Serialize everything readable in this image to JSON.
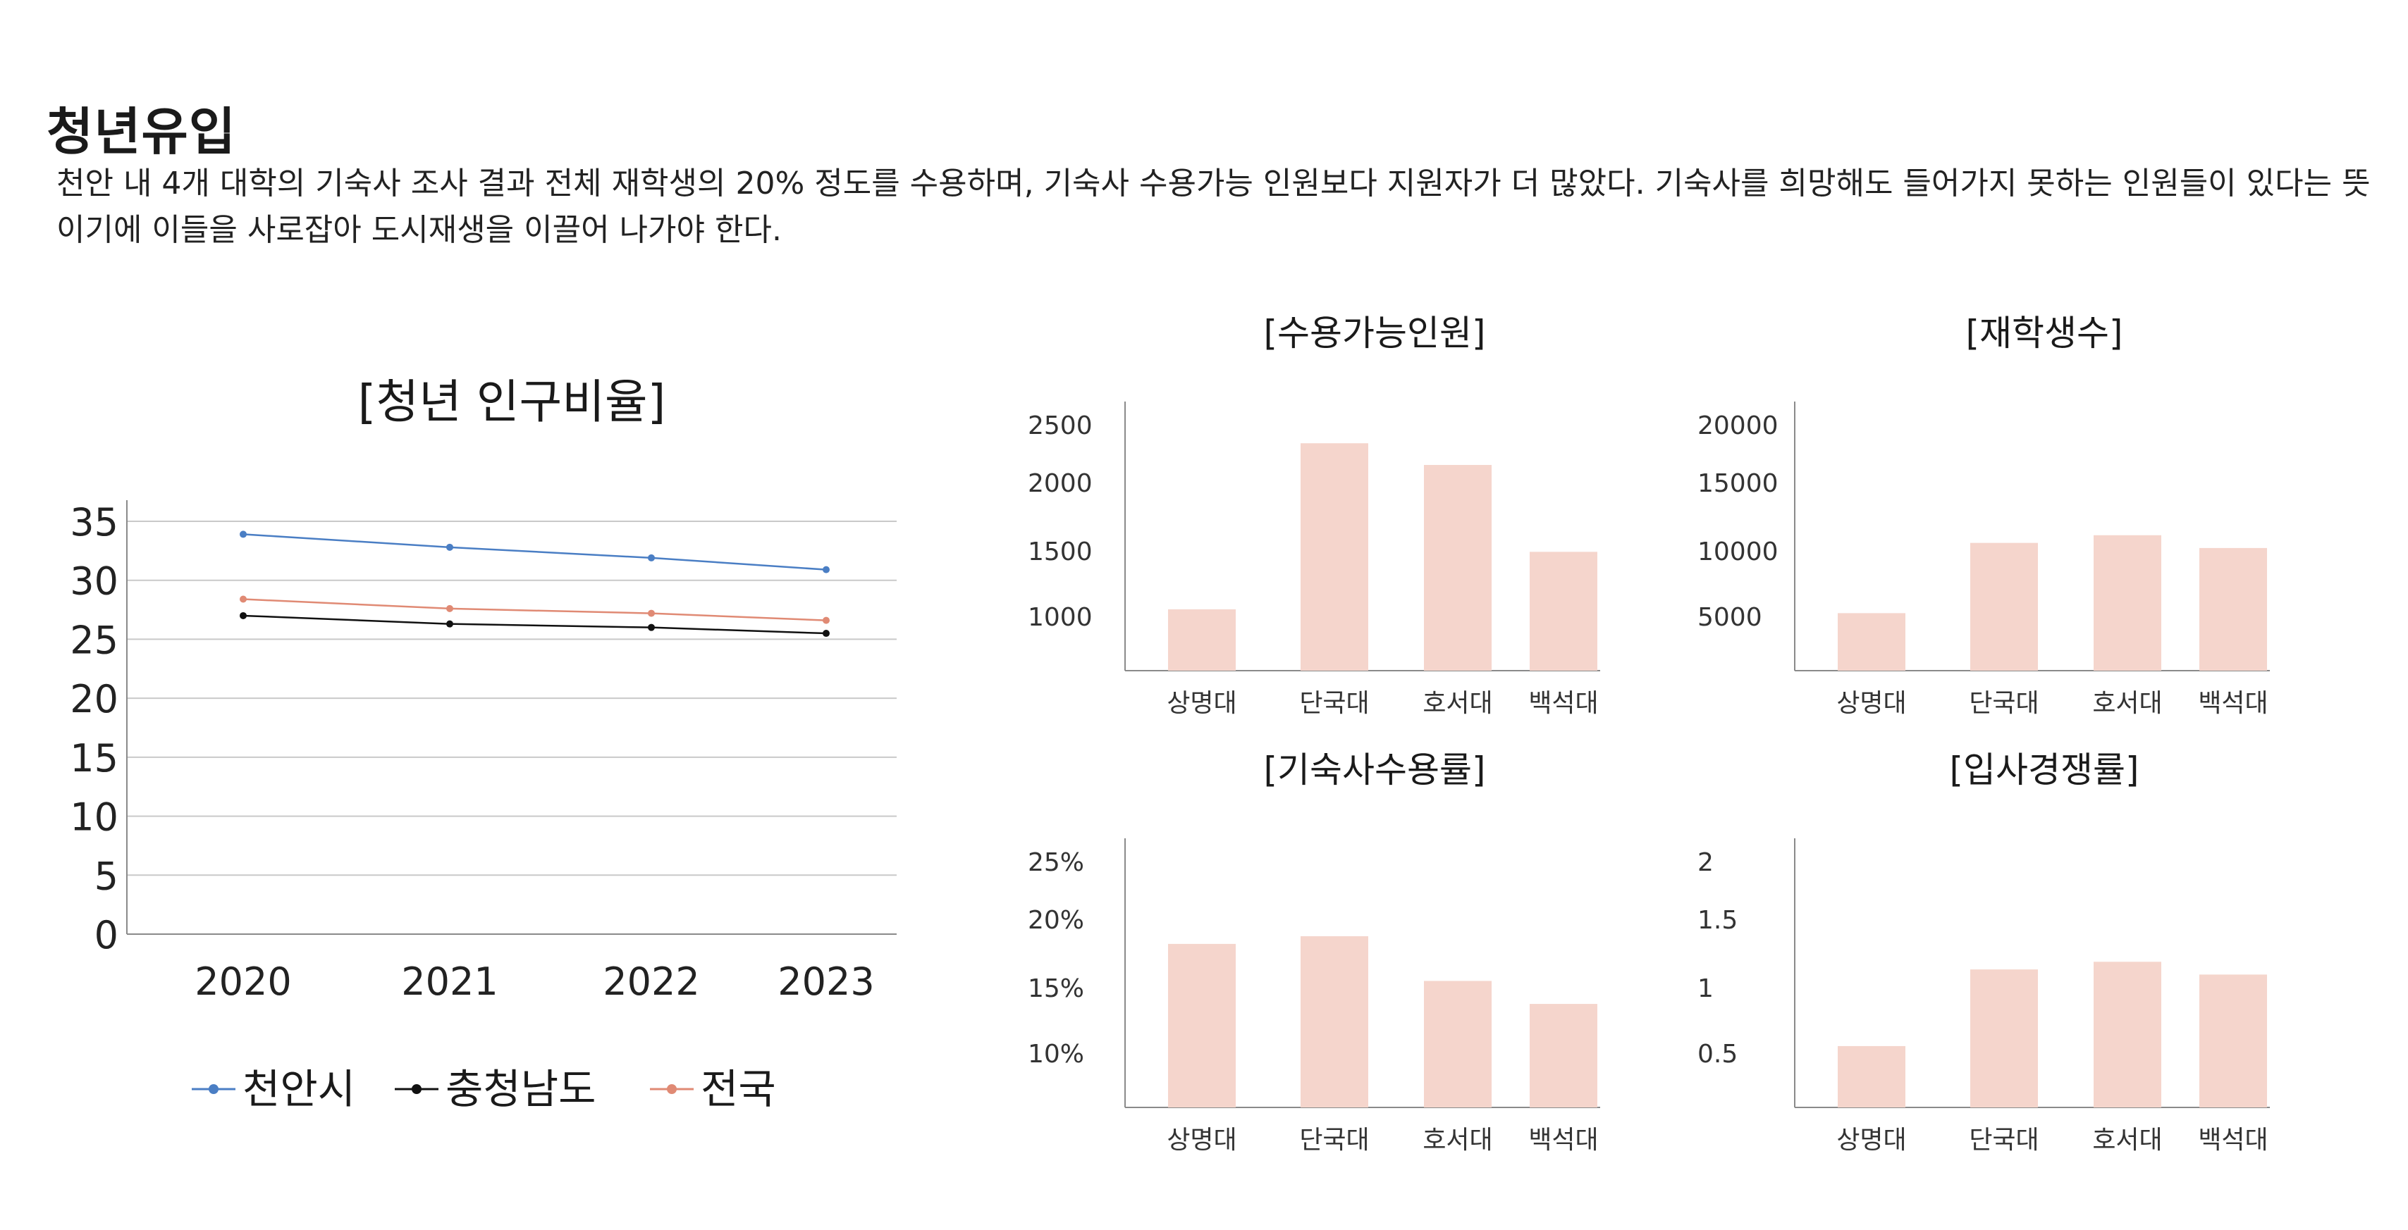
{
  "page": {
    "title": "청년유입",
    "description": "천안 내 4개 대학의 기숙사 조사 결과 전체 재학생의 20% 정도를 수용하며, 기숙사 수용가능 인원보다 지원자가 더 많았다. 기숙사를 희망해도 들어가지 못하는 인원들이 있다는 뜻이기에 이들을 사로잡아 도시재생을 이끌어 나가야 한다."
  },
  "colors": {
    "cheonan": "#4a7ec4",
    "chungnam": "#111111",
    "national": "#e08a74",
    "bar": "#f5d5cc",
    "grid": "#c9c9c9",
    "axis": "#8a8a8a"
  },
  "chart_data": [
    {
      "type": "line",
      "title": "[청년 인구비율]",
      "x": [
        "2020",
        "2021",
        "2022",
        "2023"
      ],
      "series": [
        {
          "name": "천안시",
          "values": [
            33.9,
            32.8,
            31.9,
            30.9
          ]
        },
        {
          "name": "충청남도",
          "values": [
            27.0,
            26.3,
            26.0,
            25.5
          ]
        },
        {
          "name": "전국",
          "values": [
            28.4,
            27.6,
            27.2,
            26.6
          ]
        }
      ],
      "ylim": [
        0,
        35
      ],
      "yticks": [
        "0",
        "5",
        "10",
        "15",
        "20",
        "25",
        "30",
        "35"
      ],
      "grid": true,
      "legend": "bottom"
    },
    {
      "type": "bar",
      "title": "[수용가능인원]",
      "categories": [
        "상명대",
        "단국대",
        "호서대",
        "백석대"
      ],
      "values": [
        1050,
        2350,
        2180,
        1500
      ],
      "yticks": [
        "1000",
        "1500",
        "2000",
        "2500"
      ],
      "ytick_values": [
        1000,
        1500,
        2000,
        2500
      ]
    },
    {
      "type": "bar",
      "title": "[재학생수]",
      "categories": [
        "상명대",
        "단국대",
        "호서대",
        "백석대"
      ],
      "values": [
        5200,
        10700,
        11300,
        10300
      ],
      "yticks": [
        "5000",
        "10000",
        "15000",
        "20000"
      ],
      "ytick_values": [
        5000,
        10000,
        15000,
        20000
      ]
    },
    {
      "type": "bar",
      "title": "[기숙사수용률]",
      "categories": [
        "상명대",
        "단국대",
        "호서대",
        "백석대"
      ],
      "values": [
        18.5,
        19.1,
        15.6,
        13.8
      ],
      "yticks": [
        "10%",
        "15%",
        "20%",
        "25%"
      ],
      "ytick_values": [
        10,
        15,
        20,
        25
      ]
    },
    {
      "type": "bar",
      "title": "[입사경쟁률]",
      "categories": [
        "상명대",
        "단국대",
        "호서대",
        "백석대"
      ],
      "values": [
        0.55,
        1.15,
        1.21,
        1.11
      ],
      "yticks": [
        "0.5",
        "1",
        "1.5",
        "2"
      ],
      "ytick_values": [
        0.5,
        1,
        1.5,
        2
      ]
    }
  ]
}
